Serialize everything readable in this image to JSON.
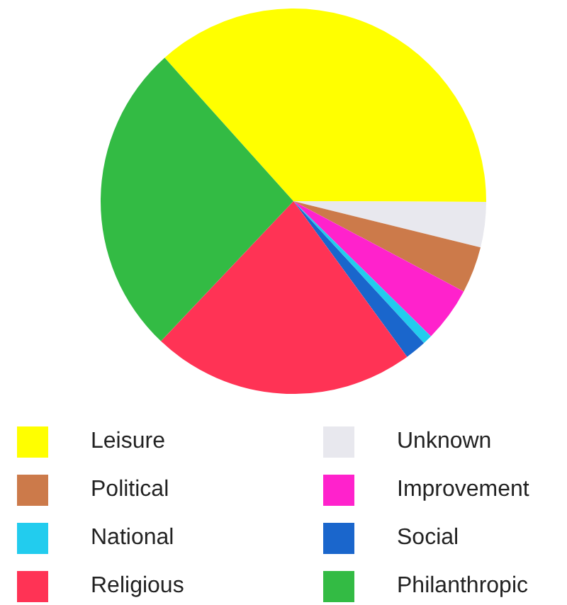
{
  "chart_data": {
    "type": "pie",
    "categories": [
      "Leisure",
      "Unknown",
      "Political",
      "Improvement",
      "National",
      "Social",
      "Religious",
      "Philanthropic"
    ],
    "values": [
      36.7,
      3.8,
      3.9,
      4.6,
      0.8,
      1.8,
      22.1,
      26.3
    ],
    "colors": [
      "#ffff00",
      "#e8e8ee",
      "#cc7a4a",
      "#ff22cc",
      "#22ccee",
      "#1a66cc",
      "#ff3355",
      "#33bb44"
    ],
    "legend": "bottom"
  }
}
